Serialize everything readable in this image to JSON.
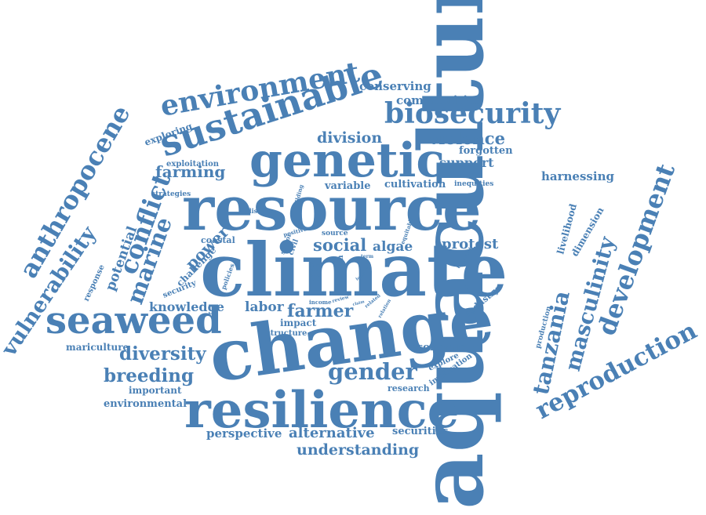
{
  "color": "#4a80b5",
  "words": {
    "aquaculture": "aquaculture",
    "climate": "climate",
    "change": "change",
    "resource": "resource",
    "resilience": "resilience",
    "genetic": "genetic",
    "seaweed": "seaweed",
    "sustainable": "sustainable",
    "environment": "environment",
    "biosecurity": "biosecurity",
    "development": "development",
    "reproduction": "reproduction",
    "masculinity": "masculinity",
    "tanzania": "tanzania",
    "anthropocene": "anthropocene",
    "vulnerability": "vulnerability",
    "conflict": "conflict",
    "marine": "marine",
    "gender": "gender",
    "diversity": "diversity",
    "breeding": "breeding",
    "farmer": "farmer",
    "social": "social",
    "violence": "violence",
    "division": "division",
    "farming": "farming",
    "potential": "potential",
    "power": "power",
    "knowledge": "knowledge",
    "labor": "labor",
    "algae": "algae",
    "protest": "protest",
    "understanding": "understanding",
    "alternative": "alternative",
    "perspective": "perspective",
    "securities": "securities",
    "communities": "communities",
    "conserving": "conserving",
    "support": "support",
    "forgotten": "forgotten",
    "harnessing": "harnessing",
    "cultivation": "cultivation",
    "variable": "variable",
    "livelihood": "livelihood",
    "dimension": "dimension",
    "exploring": "exploring",
    "exploitation": "exploitation",
    "strategies": "strategies",
    "disease": "disease",
    "building": "building",
    "inequities": "inequities",
    "equitable": "equitable",
    "source": "source",
    "positive": "positive",
    "sector": "sector",
    "civil": "civil",
    "coastal": "coastal",
    "challenge": "challenge",
    "policies": "policies",
    "security": "security",
    "response": "response",
    "hidden": "hidden",
    "term": "term",
    "goal": "goal",
    "local": "local",
    "right": "right",
    "law": "law",
    "build": "build",
    "poor": "poor",
    "income": "income",
    "review": "review",
    "claim": "claim",
    "related": "related",
    "relation": "relation",
    "industry": "industry",
    "tropical": "tropical",
    "production": "production",
    "impact": "impact",
    "structure": "structure",
    "economic": "economic",
    "explore": "explore",
    "implication": "implication",
    "research": "research",
    "mariculture": "mariculture",
    "important": "important",
    "environmental": "environmental"
  }
}
